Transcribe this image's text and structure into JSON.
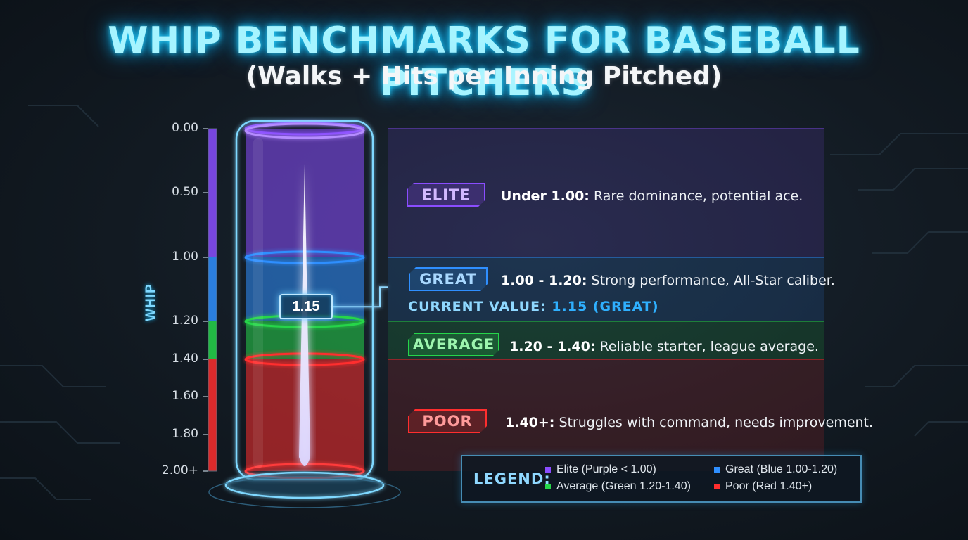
{
  "title": "WHIP BENCHMARKS FOR BASEBALL PITCHERS",
  "subtitle": "(Walks + Hits per Inning Pitched)",
  "chart_data": {
    "type": "bar",
    "title": "WHIP BENCHMARKS FOR BASEBALL PITCHERS",
    "subtitle": "(Walks + Hits per Inning Pitched)",
    "ylabel": "WHIP",
    "ylim": [
      0,
      2.0
    ],
    "yticks": [
      "0.00",
      "0.50",
      "1.00",
      "1.20",
      "1.40",
      "1.60",
      "1.80",
      "2.00+"
    ],
    "bands": [
      {
        "name": "ELITE",
        "from": 0.0,
        "to": 1.0,
        "color": "#8a4dff",
        "range_label": "Under 1.00:",
        "description": "Rare dominance, potential ace."
      },
      {
        "name": "GREAT",
        "from": 1.0,
        "to": 1.2,
        "color": "#2f8fff",
        "range_label": "1.00 - 1.20:",
        "description": "Strong performance, All-Star caliber."
      },
      {
        "name": "AVERAGE",
        "from": 1.2,
        "to": 1.4,
        "color": "#26d64a",
        "range_label": "1.20 - 1.40:",
        "description": "Reliable starter, league average."
      },
      {
        "name": "POOR",
        "from": 1.4,
        "to": 2.0,
        "color": "#ff2e2e",
        "range_label": "1.40+:",
        "description": "Struggles with command, needs improvement."
      }
    ],
    "current_value": 1.15,
    "current_value_label": "1.15",
    "current_text_prefix": "CURRENT VALUE:",
    "current_text_value": "1.15 (GREAT)",
    "legend_title": "LEGEND:",
    "legend": [
      {
        "label": "Elite (Purple < 1.00)",
        "color": "#8a4dff"
      },
      {
        "label": "Great (Blue 1.00-1.20)",
        "color": "#2f8fff"
      },
      {
        "label": "Average (Green 1.20-1.40)",
        "color": "#26d64a"
      },
      {
        "label": "Poor (Red 1.40+)",
        "color": "#ff2e2e"
      }
    ]
  }
}
